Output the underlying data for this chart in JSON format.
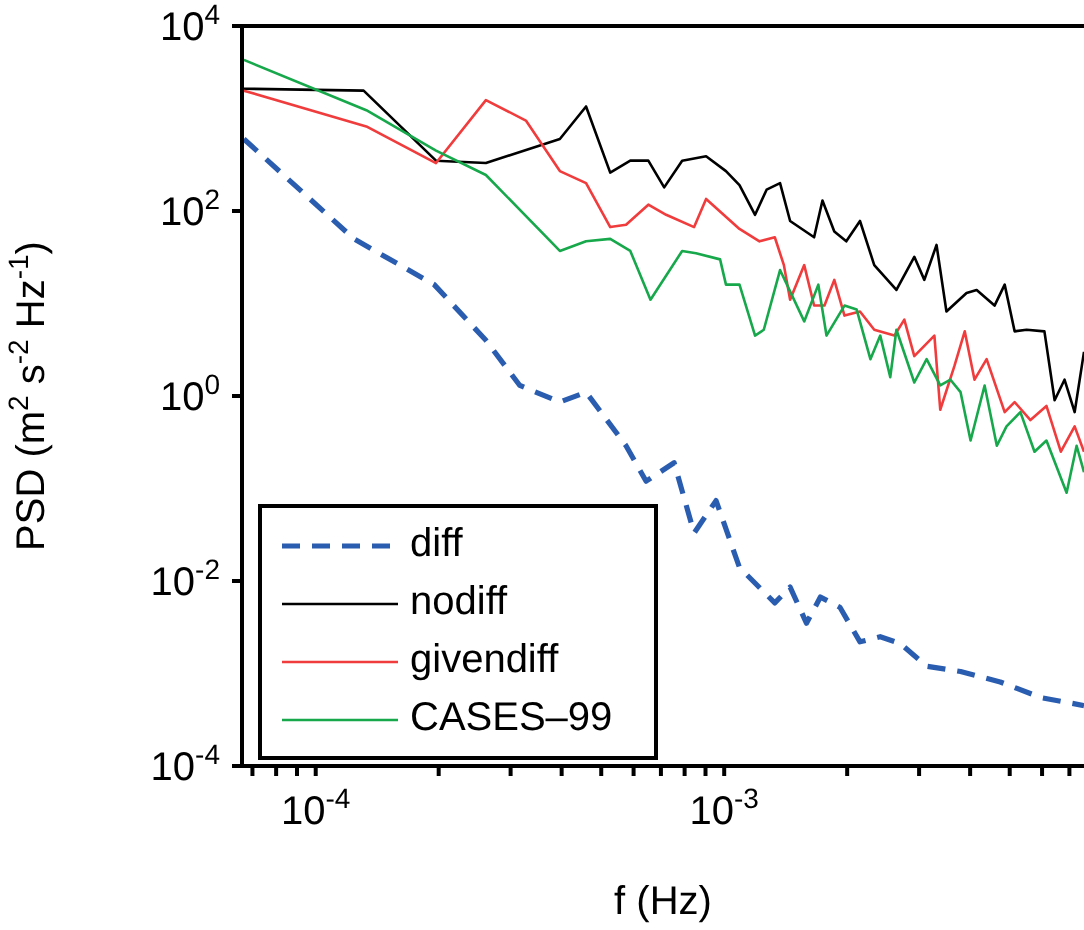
{
  "chart_data": {
    "type": "line",
    "xlabel": "f (Hz)",
    "ylabel": "PSD (m$^{2}$ s$^{-2}$ Hz$^{-1}$)",
    "log": "xy",
    "xlim": [
      6.6e-05,
      0.0076
    ],
    "ylim": [
      0.0001,
      10000
    ],
    "xticks": [
      {
        "value": 7e-05,
        "label": null
      },
      {
        "value": 8e-05,
        "label": null
      },
      {
        "value": 9e-05,
        "label": null
      },
      {
        "value": 0.0001,
        "label": "10$^{-4}$"
      },
      {
        "value": 0.0002,
        "label": null
      },
      {
        "value": 0.0003,
        "label": null
      },
      {
        "value": 0.0004,
        "label": null
      },
      {
        "value": 0.0005,
        "label": null
      },
      {
        "value": 0.0006,
        "label": null
      },
      {
        "value": 0.0007,
        "label": null
      },
      {
        "value": 0.0008,
        "label": null
      },
      {
        "value": 0.0009,
        "label": null
      },
      {
        "value": 0.001,
        "label": "10$^{-3}$"
      },
      {
        "value": 0.002,
        "label": null
      },
      {
        "value": 0.003,
        "label": null
      },
      {
        "value": 0.004,
        "label": null
      },
      {
        "value": 0.005,
        "label": null
      },
      {
        "value": 0.006,
        "label": null
      },
      {
        "value": 0.007,
        "label": null
      }
    ],
    "yticks": [
      {
        "value": 0.0001,
        "label": "10$^{-4}$"
      },
      {
        "value": 0.01,
        "label": "10$^{-2}$"
      },
      {
        "value": 1,
        "label": "10$^{0}$"
      },
      {
        "value": 100,
        "label": "10$^{2}$"
      },
      {
        "value": 10000,
        "label": "10$^{4}$"
      }
    ],
    "grid": false,
    "legend": "bottom left",
    "marker": "none",
    "series": [
      {
        "name": "diff",
        "color": "#2a5db0",
        "line_style": "dashed",
        "x": [
          6.67e-05,
          0.000124,
          0.000195,
          0.000261,
          0.000316,
          0.000396,
          0.000459,
          0.000575,
          0.000644,
          0.000754,
          0.000844,
          0.000955,
          0.00109,
          0.00133,
          0.00145,
          0.00159,
          0.00172,
          0.00192,
          0.00215,
          0.00241,
          0.0027,
          0.00313,
          0.00379,
          0.00474,
          0.00595,
          0.0076
        ],
        "values": [
          600,
          50,
          16,
          4,
          1.3,
          0.86,
          1.1,
          0.29,
          0.12,
          0.19,
          0.033,
          0.074,
          0.014,
          0.0058,
          0.0086,
          0.0035,
          0.0067,
          0.0052,
          0.0022,
          0.0025,
          0.0021,
          0.0012,
          0.00105,
          0.00081,
          0.00055,
          0.00045
        ]
      },
      {
        "name": "nodiff",
        "color": "#000000",
        "line_style": "solid",
        "x": [
          6.67e-05,
          0.000131,
          0.000197,
          0.000261,
          0.000396,
          0.000459,
          0.000526,
          0.000589,
          0.000652,
          0.000713,
          0.000789,
          0.000903,
          0.00101,
          0.00109,
          0.00119,
          0.00127,
          0.00137,
          0.00145,
          0.00166,
          0.00174,
          0.00186,
          0.00199,
          0.00215,
          0.00233,
          0.00264,
          0.00292,
          0.00309,
          0.00331,
          0.0035,
          0.00392,
          0.00415,
          0.00459,
          0.00486,
          0.00514,
          0.0055,
          0.00608,
          0.00644,
          0.00681,
          0.00721,
          0.0076
        ],
        "values": [
          2100,
          2000,
          350,
          330,
          600,
          1350,
          260,
          350,
          350,
          180,
          350,
          390,
          270,
          190,
          91,
          170,
          200,
          78,
          52,
          130,
          60,
          47,
          78,
          26,
          14,
          32,
          18,
          43,
          8.2,
          13,
          14,
          9.5,
          16,
          5,
          5.2,
          5,
          0.9,
          1.5,
          0.67,
          3
        ]
      },
      {
        "name": "givendiff",
        "color": "#f03c3c",
        "line_style": "solid",
        "x": [
          6.67e-05,
          0.000133,
          0.000197,
          0.000261,
          0.000327,
          0.000396,
          0.000459,
          0.000526,
          0.000575,
          0.000652,
          0.000721,
          0.000844,
          0.000903,
          0.00109,
          0.00122,
          0.00133,
          0.0014,
          0.00145,
          0.00157,
          0.00166,
          0.00176,
          0.00186,
          0.00197,
          0.00215,
          0.00233,
          0.00261,
          0.00276,
          0.00292,
          0.00327,
          0.00338,
          0.00366,
          0.00388,
          0.0041,
          0.00439,
          0.00486,
          0.00514,
          0.00562,
          0.00615,
          0.00667,
          0.00721,
          0.0076
        ],
        "values": [
          2000,
          820,
          330,
          1580,
          950,
          270,
          200,
          67,
          71,
          117,
          91,
          67,
          135,
          64,
          47,
          52,
          26,
          11,
          26,
          9.5,
          9.5,
          18,
          7.4,
          8.2,
          5.2,
          4.5,
          6.7,
          2.7,
          4.5,
          0.71,
          2.1,
          5,
          1.5,
          2.5,
          0.67,
          0.86,
          0.55,
          0.78,
          0.25,
          0.47,
          0.25
        ]
      },
      {
        "name": "CASES–99",
        "color": "#17a84b",
        "line_style": "solid",
        "x": [
          6.67e-05,
          0.000133,
          0.000197,
          0.000261,
          0.000396,
          0.000459,
          0.000526,
          0.000589,
          0.00066,
          0.000789,
          0.000853,
          0.000977,
          0.00101,
          0.00109,
          0.00119,
          0.00125,
          0.00137,
          0.00157,
          0.0017,
          0.00178,
          0.00197,
          0.00211,
          0.00228,
          0.00241,
          0.00255,
          0.00264,
          0.00292,
          0.00313,
          0.00338,
          0.00358,
          0.00379,
          0.00401,
          0.00434,
          0.00465,
          0.00491,
          0.00531,
          0.00575,
          0.00615,
          0.00689,
          0.00729,
          0.0076
        ],
        "values": [
          4300,
          1230,
          450,
          245,
          37,
          47,
          50,
          37,
          11,
          37,
          35,
          30,
          16,
          16,
          4.5,
          5.2,
          23,
          6.4,
          16,
          4.5,
          9.5,
          8.6,
          2.5,
          4.5,
          1.6,
          5.2,
          1.4,
          2.5,
          1.3,
          1.5,
          1.1,
          0.33,
          1.3,
          0.29,
          0.47,
          0.67,
          0.25,
          0.33,
          0.09,
          0.29,
          0.15
        ]
      }
    ]
  }
}
